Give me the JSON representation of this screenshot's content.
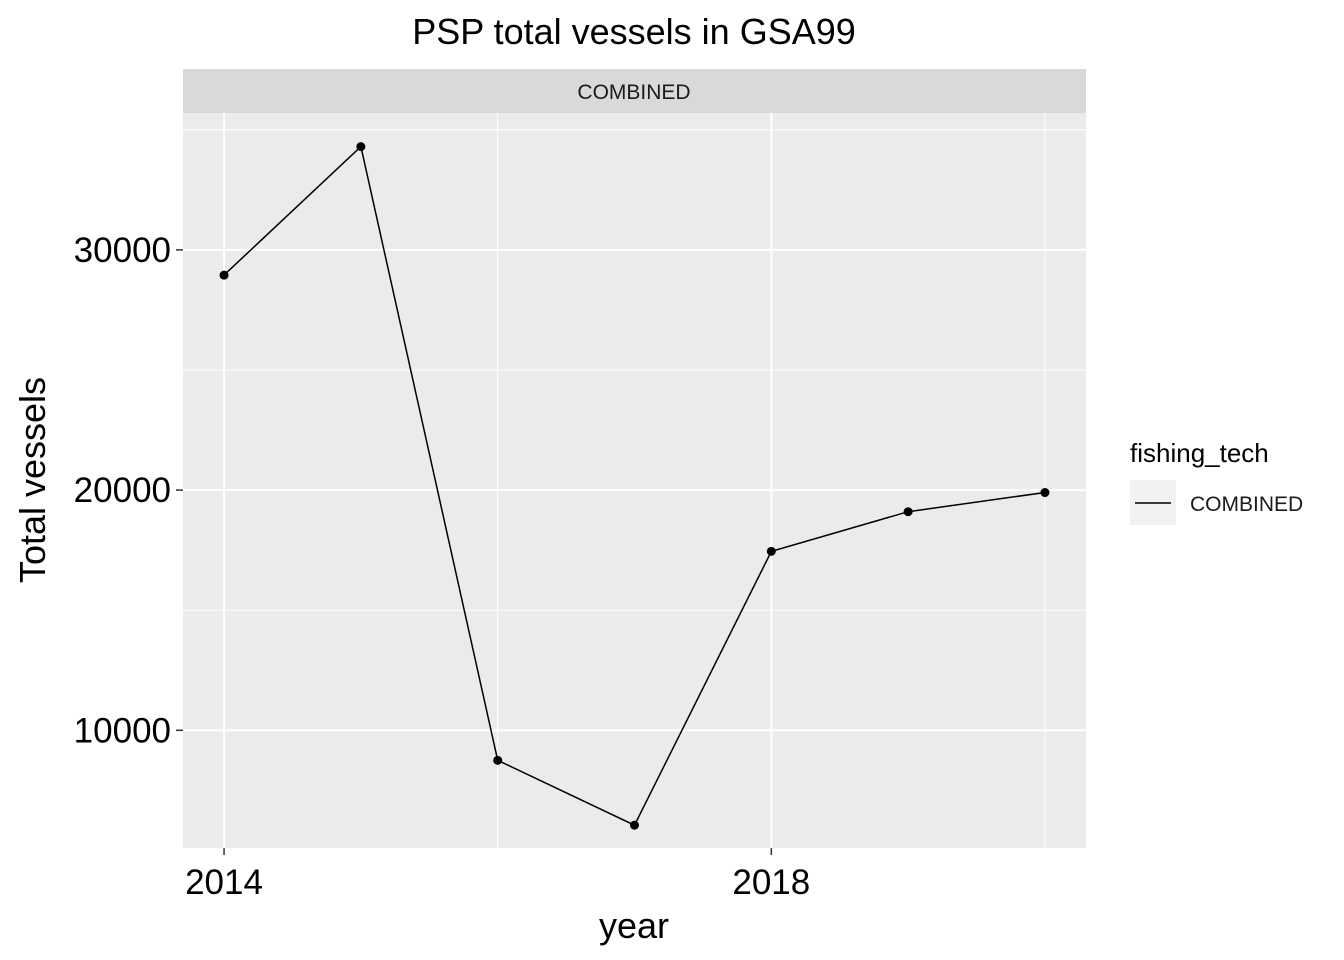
{
  "chart_data": {
    "type": "line",
    "title": "PSP total vessels in GSA99",
    "facet_label": "COMBINED",
    "xlabel": "year",
    "ylabel": "Total vessels",
    "x_ticks": [
      2014,
      2018
    ],
    "y_ticks": [
      10000,
      20000,
      30000
    ],
    "xlim": [
      2013.7,
      2020.3
    ],
    "ylim": [
      5100,
      35700
    ],
    "grid": true,
    "legend_position": "right",
    "legend": {
      "title": "fishing_tech",
      "entries": [
        "COMBINED"
      ]
    },
    "series": [
      {
        "name": "COMBINED",
        "color": "#000000",
        "x": [
          2014,
          2015,
          2016,
          2017,
          2018,
          2019,
          2020
        ],
        "y": [
          28950,
          34300,
          8750,
          6050,
          17450,
          19100,
          19900
        ]
      }
    ]
  },
  "colors": {
    "panel_background": "#ebebeb",
    "strip_background": "#d9d9d9",
    "grid": "#ffffff",
    "line": "#000000",
    "legend_key_background": "#f2f2f2"
  }
}
